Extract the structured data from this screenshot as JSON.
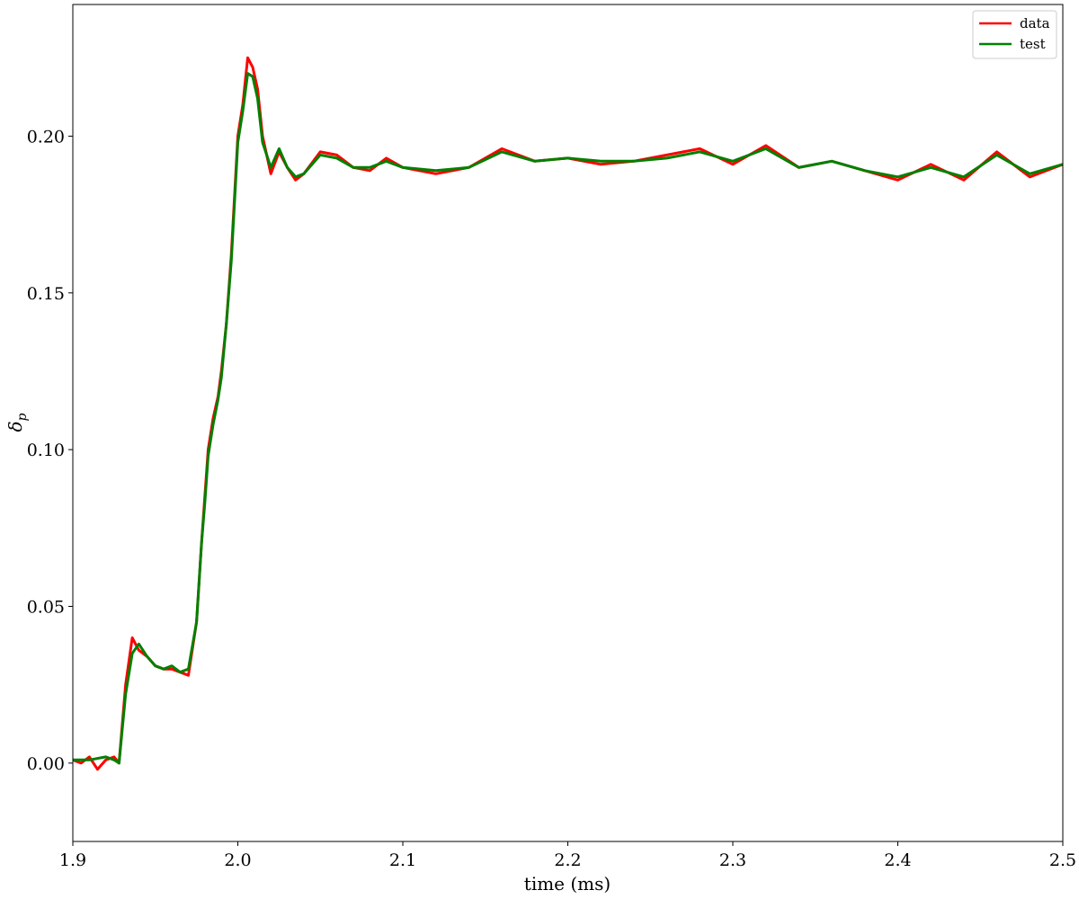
{
  "chart_data": {
    "type": "line",
    "xlabel": "time (ms)",
    "ylabel_base": "δ",
    "ylabel_sub": "p",
    "xlim": [
      1.9,
      2.5
    ],
    "ylim": [
      -0.025,
      0.242
    ],
    "x_ticks": [
      "1.9",
      "2.0",
      "2.1",
      "2.2",
      "2.3",
      "2.4",
      "2.5"
    ],
    "y_ticks": [
      "0.00",
      "0.05",
      "0.10",
      "0.15",
      "0.20"
    ],
    "legend_position": "top-right",
    "grid": false,
    "series": [
      {
        "name": "data",
        "color": "#ff0000",
        "x": [
          1.9,
          1.905,
          1.91,
          1.915,
          1.92,
          1.925,
          1.928,
          1.932,
          1.936,
          1.94,
          1.945,
          1.95,
          1.955,
          1.96,
          1.965,
          1.97,
          1.975,
          1.978,
          1.98,
          1.982,
          1.985,
          1.988,
          1.99,
          1.993,
          1.996,
          2.0,
          2.003,
          2.006,
          2.009,
          2.012,
          2.015,
          2.02,
          2.025,
          2.03,
          2.035,
          2.04,
          2.05,
          2.06,
          2.07,
          2.08,
          2.09,
          2.1,
          2.12,
          2.14,
          2.16,
          2.18,
          2.2,
          2.22,
          2.24,
          2.26,
          2.28,
          2.3,
          2.32,
          2.34,
          2.36,
          2.38,
          2.4,
          2.42,
          2.44,
          2.46,
          2.48,
          2.5
        ],
        "y": [
          0.001,
          0.0,
          0.002,
          -0.002,
          0.001,
          0.002,
          0.0,
          0.025,
          0.04,
          0.036,
          0.034,
          0.031,
          0.03,
          0.03,
          0.029,
          0.028,
          0.045,
          0.07,
          0.085,
          0.1,
          0.11,
          0.117,
          0.125,
          0.14,
          0.162,
          0.2,
          0.21,
          0.225,
          0.222,
          0.215,
          0.2,
          0.188,
          0.195,
          0.19,
          0.186,
          0.188,
          0.195,
          0.194,
          0.19,
          0.189,
          0.193,
          0.19,
          0.188,
          0.19,
          0.196,
          0.192,
          0.193,
          0.191,
          0.192,
          0.194,
          0.196,
          0.191,
          0.197,
          0.19,
          0.192,
          0.189,
          0.186,
          0.191,
          0.186,
          0.195,
          0.187,
          0.191
        ]
      },
      {
        "name": "test",
        "color": "#008000",
        "x": [
          1.9,
          1.91,
          1.92,
          1.925,
          1.928,
          1.932,
          1.936,
          1.94,
          1.945,
          1.95,
          1.955,
          1.96,
          1.965,
          1.97,
          1.975,
          1.978,
          1.98,
          1.982,
          1.985,
          1.988,
          1.99,
          1.993,
          1.996,
          2.0,
          2.003,
          2.006,
          2.009,
          2.012,
          2.015,
          2.02,
          2.025,
          2.03,
          2.035,
          2.04,
          2.05,
          2.06,
          2.07,
          2.08,
          2.09,
          2.1,
          2.12,
          2.14,
          2.16,
          2.18,
          2.2,
          2.22,
          2.24,
          2.26,
          2.28,
          2.3,
          2.32,
          2.34,
          2.36,
          2.38,
          2.4,
          2.42,
          2.44,
          2.46,
          2.48,
          2.5
        ],
        "y": [
          0.001,
          0.001,
          0.002,
          0.001,
          0.0,
          0.022,
          0.035,
          0.038,
          0.034,
          0.031,
          0.03,
          0.031,
          0.029,
          0.03,
          0.045,
          0.07,
          0.083,
          0.098,
          0.108,
          0.116,
          0.123,
          0.14,
          0.16,
          0.198,
          0.208,
          0.22,
          0.219,
          0.212,
          0.198,
          0.19,
          0.196,
          0.19,
          0.187,
          0.188,
          0.194,
          0.193,
          0.19,
          0.19,
          0.192,
          0.19,
          0.189,
          0.19,
          0.195,
          0.192,
          0.193,
          0.192,
          0.192,
          0.193,
          0.195,
          0.192,
          0.196,
          0.19,
          0.192,
          0.189,
          0.187,
          0.19,
          0.187,
          0.194,
          0.188,
          0.191
        ]
      }
    ]
  }
}
